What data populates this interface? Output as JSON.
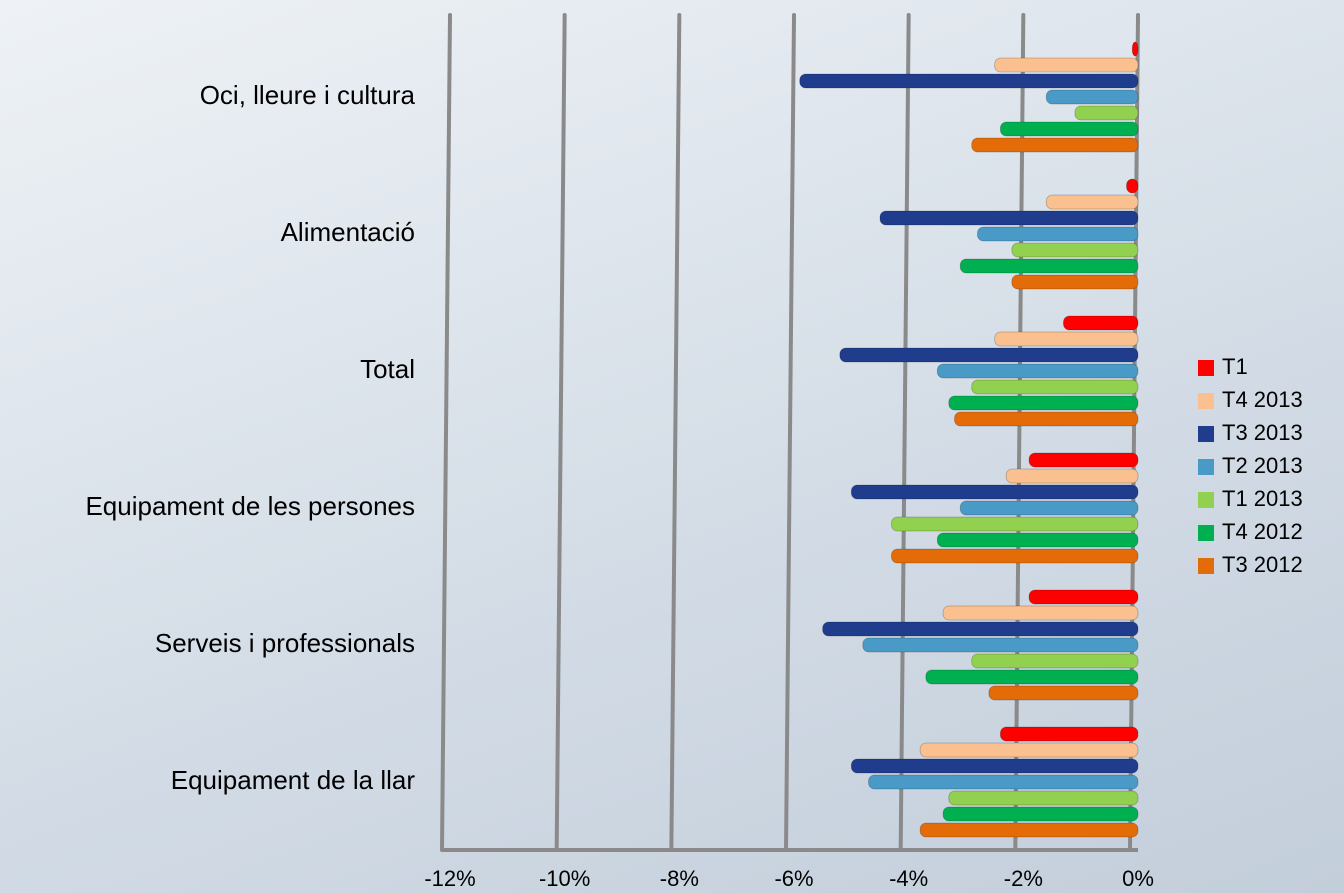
{
  "chart_data": {
    "type": "hbar",
    "categories": [
      "Oci, lleure i cultura",
      "Alimentació",
      "Total",
      "Equipament de les persones",
      "Serveis i professionals",
      "Equipament de la llar"
    ],
    "series": [
      {
        "name": "T1",
        "color": "#ff0000",
        "values": [
          -0.1,
          -0.2,
          -1.3,
          -1.9,
          -1.9,
          -2.4
        ]
      },
      {
        "name": "T4 2013",
        "color": "#fac090",
        "values": [
          -2.5,
          -1.6,
          -2.5,
          -2.3,
          -3.4,
          -3.8
        ]
      },
      {
        "name": "T3 2013",
        "color": "#1f3d8c",
        "values": [
          -5.9,
          -4.5,
          -5.2,
          -5.0,
          -5.5,
          -5.0
        ]
      },
      {
        "name": "T2 2013",
        "color": "#4a9ac8",
        "values": [
          -1.6,
          -2.8,
          -3.5,
          -3.1,
          -4.8,
          -4.7
        ]
      },
      {
        "name": "T1 2013",
        "color": "#92d050",
        "values": [
          -1.1,
          -2.2,
          -2.9,
          -4.3,
          -2.9,
          -3.3
        ]
      },
      {
        "name": "T4 2012",
        "color": "#00b050",
        "values": [
          -2.4,
          -3.1,
          -3.3,
          -3.5,
          -3.7,
          -3.4
        ]
      },
      {
        "name": "T3 2012",
        "color": "#e36c09",
        "values": [
          -2.9,
          -2.2,
          -3.2,
          -4.3,
          -2.6,
          -3.8
        ]
      }
    ],
    "xlim": [
      -12,
      0
    ],
    "xticks": [
      {
        "value": -12,
        "label": "-12%"
      },
      {
        "value": -10,
        "label": "-10%"
      },
      {
        "value": -8,
        "label": "-8%"
      },
      {
        "value": -6,
        "label": "-6%"
      },
      {
        "value": -4,
        "label": "-4%"
      },
      {
        "value": -2,
        "label": "-2%"
      },
      {
        "value": 0,
        "label": "0%"
      }
    ],
    "grid": true,
    "legend": "right"
  }
}
